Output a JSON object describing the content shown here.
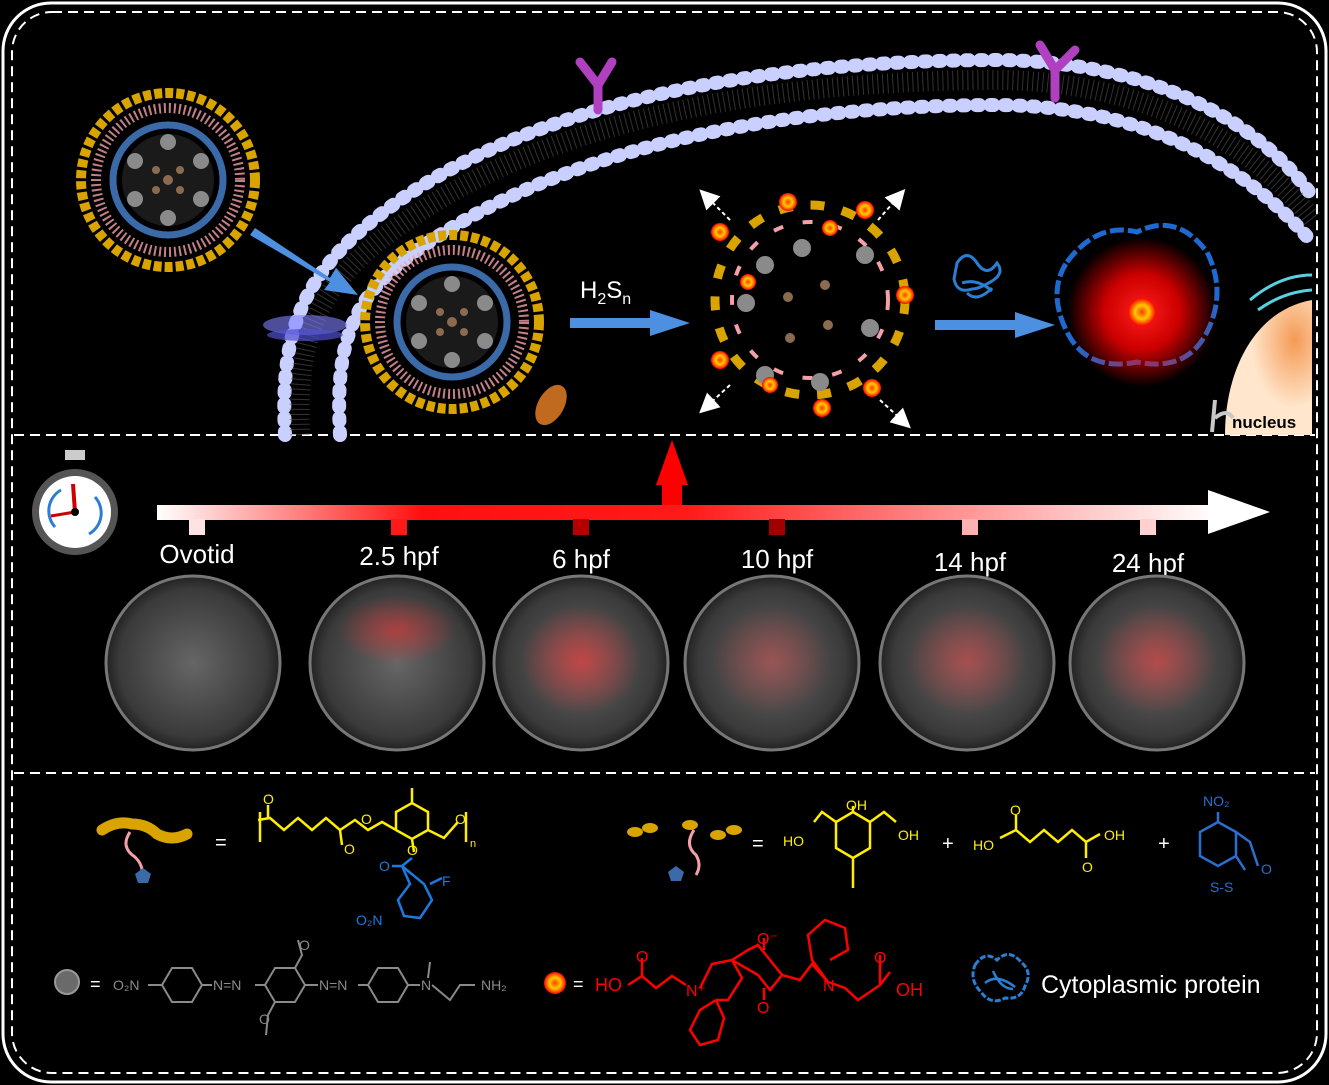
{
  "top_panel": {
    "reagent_label": "H2Sn",
    "reagent_main": "H",
    "reagent_sub1": "2",
    "reagent_s": "S",
    "reagent_sub2": "n",
    "nucleus_label": "nucleus"
  },
  "timeline": {
    "stages": [
      {
        "label": "Ovotid"
      },
      {
        "label": "2.5 hpf"
      },
      {
        "label": "6 hpf"
      },
      {
        "label": "10 hpf"
      },
      {
        "label": "14 hpf"
      },
      {
        "label": "24 hpf"
      }
    ],
    "tick_colors": [
      "#fde3e3",
      "#ff1a1a",
      "#b50000",
      "#a00000",
      "#ffb0b0",
      "#ffd0d0"
    ],
    "embryo_red_intensity": [
      0,
      0.6,
      0.7,
      0.4,
      0.5,
      0.6
    ]
  },
  "legend": {
    "polymer": {
      "equals": "=",
      "carbonyl_o": "O",
      "ester_o": "O",
      "ether_o": "O",
      "ether_o2": "O",
      "repeat_n": "n",
      "phenol_o": "O",
      "acyl_o": "O",
      "fluoro": "F",
      "nitro": "O₂N"
    },
    "degradation": {
      "equals": "=",
      "plus1": "+",
      "plus2": "+",
      "triol_oh_top": "OH",
      "triol_ho_left": "HO",
      "triol_oh_right": "OH",
      "acid_ho": "HO",
      "acid_oh": "OH",
      "acid_o1": "O",
      "acid_o2": "O",
      "dithiole_no2": "NO₂",
      "dithiole_o": "O",
      "dithiole_s": "S-S"
    },
    "quencher": {
      "equals": "=",
      "o2n": "O₂N",
      "azo1": "N=N",
      "azo2": "N=N",
      "methoxy_o1": "O",
      "methoxy_o2": "O",
      "amine_n": "N",
      "nh2": "NH₂"
    },
    "dye": {
      "equals": "=",
      "ho": "HO",
      "oh": "OH",
      "n_plus": "N⁺",
      "n": "N",
      "o_minus": "O⁻",
      "o_bottom": "O",
      "o_acid1": "O",
      "o_acid2": "O"
    },
    "protein_label": "Cytoplasmic  protein"
  },
  "colors": {
    "background": "#000000",
    "border": "#ffffff",
    "polymer_yellow": "#ffee00",
    "micelle_gold": "#d9a300",
    "chain_pink": "#f4a0a8",
    "pentagon_blue": "#3a6aa8",
    "nitro_blue": "#1a7ae0",
    "dye_red": "#ff0000",
    "quencher_gray": "#8a8a8a",
    "protein_blue": "#2a7fd4",
    "arrow_blue": "#4d8fe0"
  }
}
